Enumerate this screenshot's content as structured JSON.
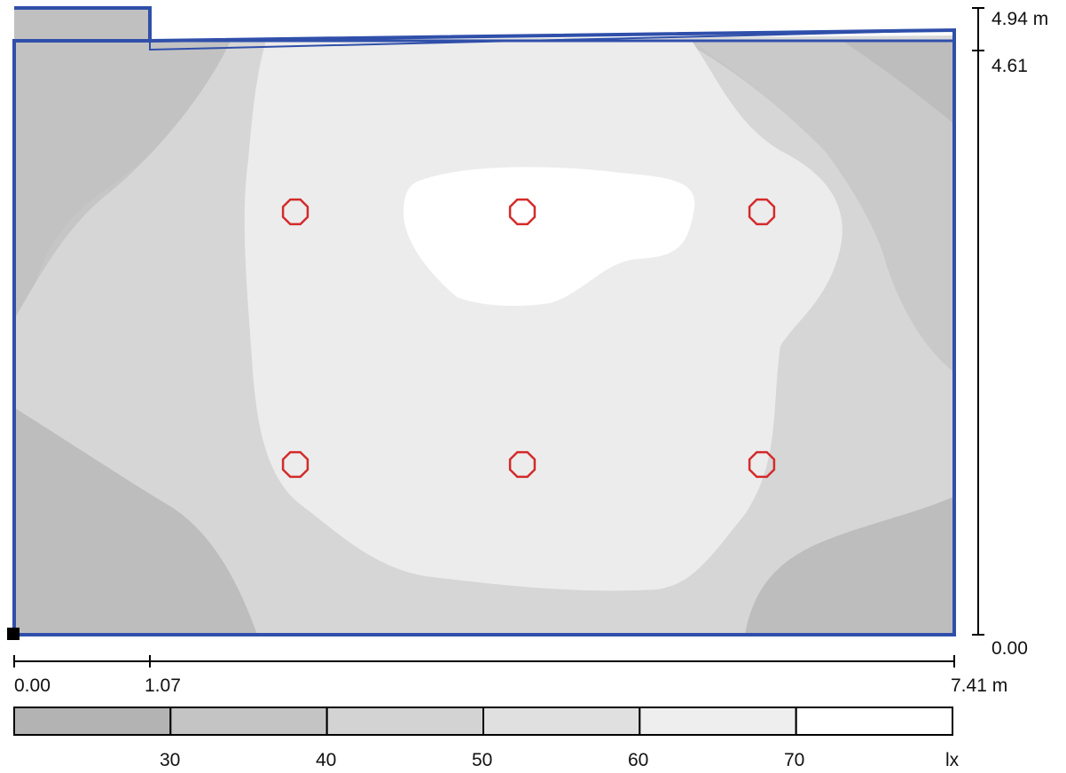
{
  "dims": {
    "y_top": "4.94 m",
    "y_mid": "4.61",
    "y_bottom": "0.00",
    "x_left": "0.00",
    "x_mid": "1.07",
    "x_right": "7.41 m"
  },
  "legend": {
    "ticks": [
      "30",
      "40",
      "50",
      "60",
      "70"
    ],
    "unit": "lx",
    "colors": [
      "#b3b3b3",
      "#c4c4c4",
      "#d3d3d3",
      "#e0e0e0",
      "#eeeeee",
      "#ffffff"
    ]
  },
  "colors": {
    "outline": "#2f4faa",
    "luminaire": "#d42a2a"
  },
  "luminaires": [
    {
      "label": "row1-col1"
    },
    {
      "label": "row1-col2"
    },
    {
      "label": "row1-col3"
    },
    {
      "label": "row2-col1"
    },
    {
      "label": "row2-col2"
    },
    {
      "label": "row2-col3"
    }
  ]
}
